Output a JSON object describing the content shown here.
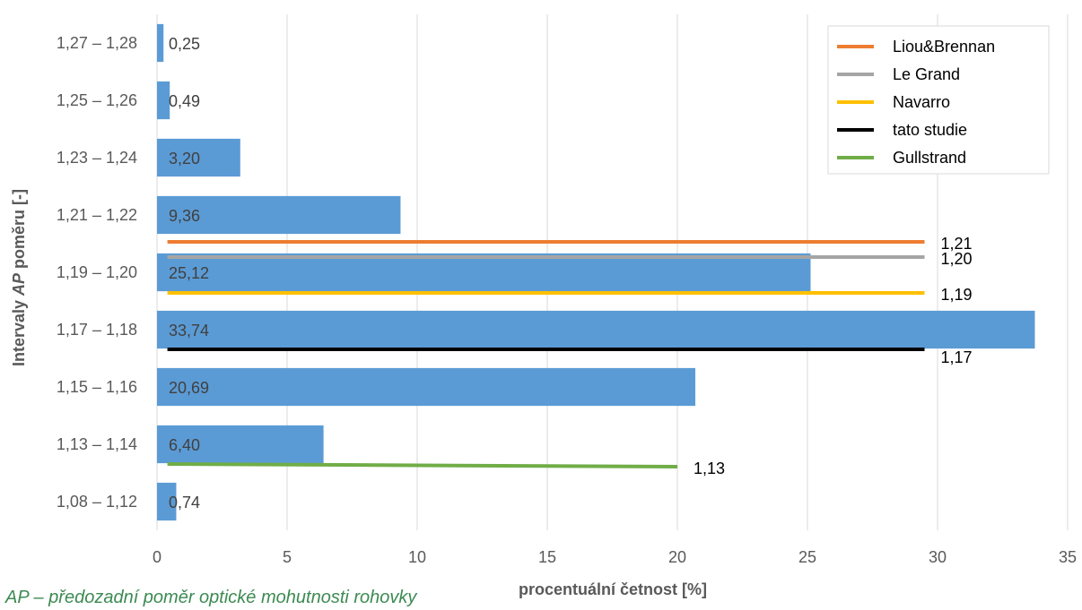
{
  "chart_data": {
    "type": "bar",
    "orientation": "horizontal",
    "categories": [
      "1,27 – 1,28",
      "1,25 – 1,26",
      "1,23 – 1,24",
      "1,21 – 1,22",
      "1,19 – 1,20",
      "1,17 – 1,18",
      "1,15 – 1,16",
      "1,13 – 1,14",
      "1,08 – 1,12"
    ],
    "values": [
      0.25,
      0.49,
      3.2,
      9.36,
      25.12,
      33.74,
      20.69,
      6.4,
      0.74
    ],
    "data_labels": [
      "0,25",
      "0,49",
      "3,20",
      "9,36",
      "25,12",
      "33,74",
      "20,69",
      "6,40",
      "0,74"
    ],
    "bar_color": "#5b9bd5",
    "xlabel": "procentuální četnost [%]",
    "ylabel_parts": [
      "Intervaly ",
      "AP",
      " poměru [-]"
    ],
    "xlim": [
      0,
      35
    ],
    "xticks": [
      "0",
      "5",
      "10",
      "15",
      "20",
      "25",
      "30",
      "35"
    ],
    "grid": "vertical",
    "legend_position": "top-right",
    "reference_lines": [
      {
        "name": "Liou&Brennan",
        "color": "#ed7d31",
        "label": "1,21",
        "x_start": 0.4,
        "x_end": 29.5
      },
      {
        "name": "Le Grand",
        "color": "#a5a5a5",
        "label": "1,20",
        "x_start": 0.4,
        "x_end": 29.5
      },
      {
        "name": "Navarro",
        "color": "#ffc000",
        "label": "1,19",
        "x_start": 0.4,
        "x_end": 29.5
      },
      {
        "name": "tato studie",
        "color": "#000000",
        "label": "1,17",
        "x_start": 0.4,
        "x_end": 29.5
      },
      {
        "name": "Gullstrand",
        "color": "#70ad47",
        "label": "1,13",
        "x_start": 0.4,
        "x_end": 20.0
      }
    ]
  },
  "footnote": "AP – předozadní poměr optické mohutnosti rohovky"
}
